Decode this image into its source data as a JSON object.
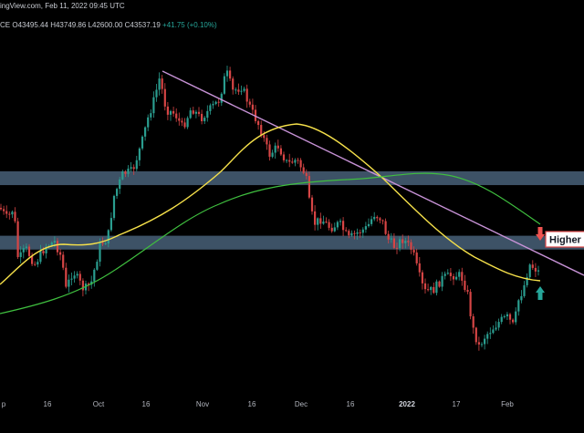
{
  "header": {
    "source_line": "ingView.com, Feb 11, 2022 09:45 UTC",
    "ohlc_prefix": "CE",
    "open": "O43495.44",
    "high": "H43749.86",
    "low": "L42600.00",
    "close": "C43537.19",
    "change": "+41.75 (+0.10%)"
  },
  "colors": {
    "background": "#000000",
    "zone": "#3d5266",
    "trendline": "#c792d6",
    "ma_fast": "#f5e04a",
    "ma_slow": "#3fbf3f",
    "up_candle": "#2a9d8f",
    "down_candle": "#d64545",
    "arrow_up": "#26a69a",
    "arrow_down": "#ef5350"
  },
  "chart_data": {
    "type": "candlestick",
    "x_tick_labels": [
      "p",
      "16",
      "Oct",
      "16",
      "Nov",
      "16",
      "Dec",
      "16",
      "2022",
      "17",
      "Feb"
    ],
    "annotation": "Higher H",
    "resistance_zones": [
      {
        "low": 52500,
        "high": 54000
      },
      {
        "low": 45500,
        "high": 47000
      }
    ],
    "grid": false,
    "legend": "none"
  }
}
